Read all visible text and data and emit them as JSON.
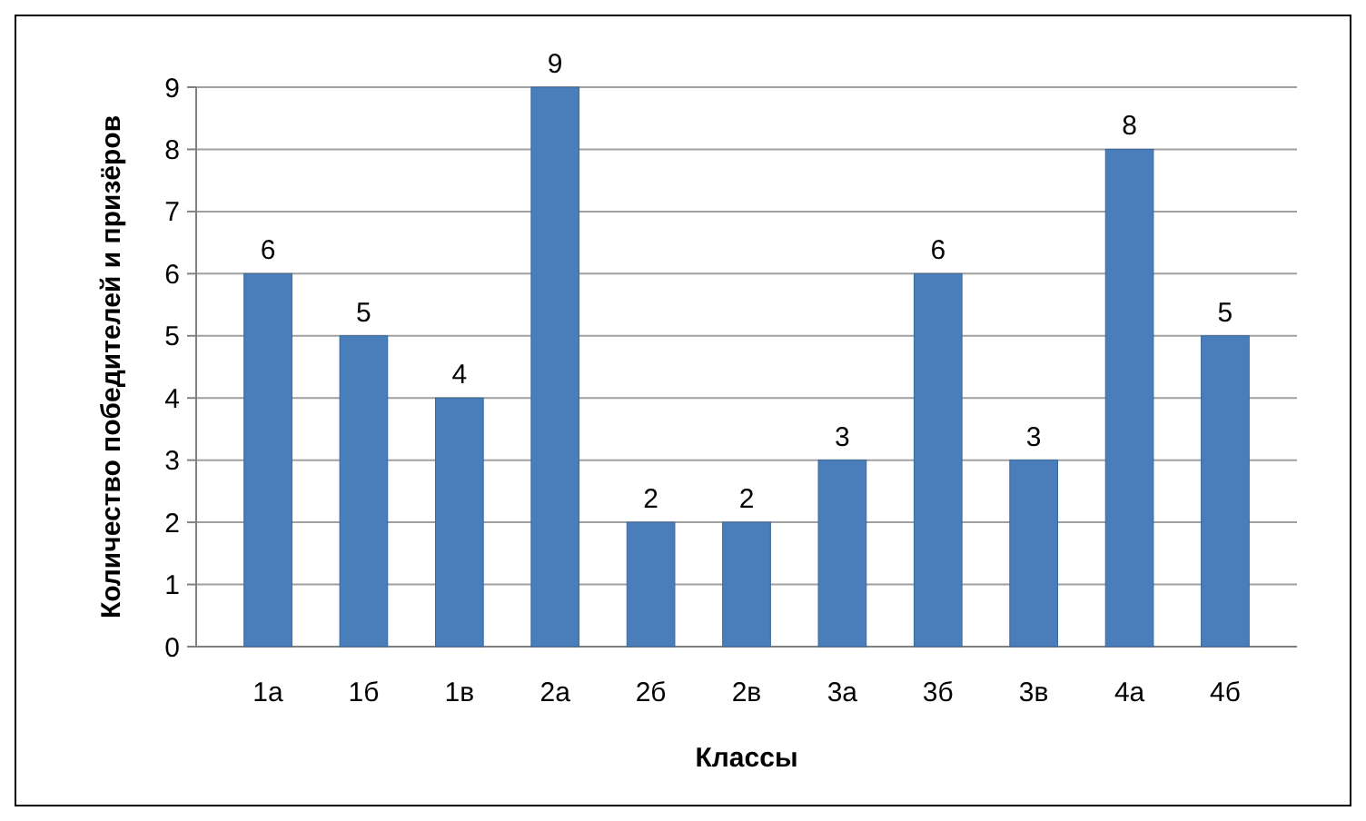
{
  "chart_data": {
    "type": "bar",
    "xlabel": "Классы",
    "ylabel": "Количество победителей и призёров",
    "categories": [
      "1а",
      "1б",
      "1в",
      "2а",
      "2б",
      "2в",
      "3а",
      "3б",
      "3в",
      "4а",
      "4б"
    ],
    "values": [
      6,
      5,
      4,
      9,
      2,
      2,
      3,
      6,
      3,
      8,
      5
    ],
    "color": "#4a7ebb",
    "ylim": [
      0,
      9
    ],
    "yticks": [
      0,
      1,
      2,
      3,
      4,
      5,
      6,
      7,
      8,
      9
    ],
    "grid": "y",
    "data_labels": true
  }
}
